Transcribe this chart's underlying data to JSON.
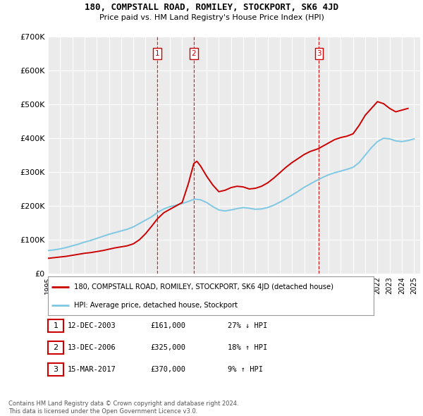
{
  "title": "180, COMPSTALL ROAD, ROMILEY, STOCKPORT, SK6 4JD",
  "subtitle": "Price paid vs. HM Land Registry's House Price Index (HPI)",
  "ylim": [
    0,
    700000
  ],
  "yticks": [
    0,
    100000,
    200000,
    300000,
    400000,
    500000,
    600000,
    700000
  ],
  "ytick_labels": [
    "£0",
    "£100K",
    "£200K",
    "£300K",
    "£400K",
    "£500K",
    "£600K",
    "£700K"
  ],
  "background_color": "#ffffff",
  "plot_bg_color": "#ebebeb",
  "grid_color": "#ffffff",
  "hpi_color": "#7ec8e3",
  "price_color": "#cc0000",
  "vline_color": "#cc0000",
  "purchases": [
    {
      "date_num": 2003.95,
      "price": 161000,
      "label": "1"
    },
    {
      "date_num": 2006.95,
      "price": 325000,
      "label": "2"
    },
    {
      "date_num": 2017.21,
      "price": 370000,
      "label": "3"
    }
  ],
  "hpi_data": {
    "years": [
      1995.0,
      1995.5,
      1996.0,
      1996.5,
      1997.0,
      1997.5,
      1998.0,
      1998.5,
      1999.0,
      1999.5,
      2000.0,
      2000.5,
      2001.0,
      2001.5,
      2002.0,
      2002.5,
      2003.0,
      2003.5,
      2004.0,
      2004.5,
      2005.0,
      2005.5,
      2006.0,
      2006.5,
      2007.0,
      2007.5,
      2008.0,
      2008.5,
      2009.0,
      2009.5,
      2010.0,
      2010.5,
      2011.0,
      2011.5,
      2012.0,
      2012.5,
      2013.0,
      2013.5,
      2014.0,
      2014.5,
      2015.0,
      2015.5,
      2016.0,
      2016.5,
      2017.0,
      2017.5,
      2018.0,
      2018.5,
      2019.0,
      2019.5,
      2020.0,
      2020.5,
      2021.0,
      2021.5,
      2022.0,
      2022.5,
      2023.0,
      2023.5,
      2024.0,
      2024.5,
      2025.0
    ],
    "values": [
      68000,
      70000,
      73000,
      77000,
      82000,
      87000,
      93000,
      98000,
      104000,
      110000,
      116000,
      121000,
      126000,
      131000,
      138000,
      148000,
      158000,
      168000,
      181000,
      191000,
      198000,
      202000,
      207000,
      213000,
      220000,
      218000,
      210000,
      198000,
      188000,
      185000,
      188000,
      192000,
      195000,
      193000,
      190000,
      191000,
      195000,
      202000,
      211000,
      221000,
      232000,
      243000,
      255000,
      265000,
      275000,
      284000,
      292000,
      298000,
      303000,
      308000,
      314000,
      328000,
      350000,
      372000,
      390000,
      400000,
      398000,
      392000,
      390000,
      393000,
      398000
    ]
  },
  "price_data": {
    "years": [
      1995.0,
      1995.5,
      1996.0,
      1996.5,
      1997.0,
      1997.5,
      1998.0,
      1998.5,
      1999.0,
      1999.5,
      2000.0,
      2000.5,
      2001.0,
      2001.5,
      2002.0,
      2002.5,
      2003.0,
      2003.5,
      2003.95,
      2004.5,
      2005.0,
      2005.5,
      2006.0,
      2006.5,
      2006.95,
      2007.2,
      2007.5,
      2008.0,
      2008.5,
      2009.0,
      2009.5,
      2010.0,
      2010.5,
      2011.0,
      2011.5,
      2012.0,
      2012.5,
      2013.0,
      2013.5,
      2014.0,
      2014.5,
      2015.0,
      2015.5,
      2016.0,
      2016.5,
      2017.0,
      2017.21,
      2017.5,
      2018.0,
      2018.5,
      2019.0,
      2019.5,
      2020.0,
      2020.5,
      2021.0,
      2021.5,
      2022.0,
      2022.5,
      2023.0,
      2023.5,
      2024.0,
      2024.5
    ],
    "values": [
      45000,
      47000,
      49000,
      51000,
      54000,
      57000,
      60000,
      62000,
      65000,
      68000,
      72000,
      76000,
      79000,
      82000,
      88000,
      100000,
      118000,
      140000,
      161000,
      180000,
      190000,
      200000,
      210000,
      265000,
      325000,
      332000,
      318000,
      288000,
      262000,
      242000,
      246000,
      254000,
      258000,
      256000,
      250000,
      252000,
      258000,
      268000,
      282000,
      298000,
      314000,
      328000,
      340000,
      352000,
      361000,
      367000,
      370000,
      376000,
      386000,
      396000,
      402000,
      406000,
      413000,
      438000,
      468000,
      488000,
      508000,
      502000,
      488000,
      478000,
      483000,
      488000
    ]
  },
  "transaction_labels": [
    {
      "label": "1",
      "date": "12-DEC-2003",
      "price": "£161,000",
      "hpi_rel": "27% ↓ HPI"
    },
    {
      "label": "2",
      "date": "13-DEC-2006",
      "price": "£325,000",
      "hpi_rel": "18% ↑ HPI"
    },
    {
      "label": "3",
      "date": "15-MAR-2017",
      "price": "£370,000",
      "hpi_rel": "9% ↑ HPI"
    }
  ],
  "legend_line1": "180, COMPSTALL ROAD, ROMILEY, STOCKPORT, SK6 4JD (detached house)",
  "legend_line2": "HPI: Average price, detached house, Stockport",
  "footer_line1": "Contains HM Land Registry data © Crown copyright and database right 2024.",
  "footer_line2": "This data is licensed under the Open Government Licence v3.0.",
  "xlabel_years": [
    1995,
    1996,
    1997,
    1998,
    1999,
    2000,
    2001,
    2002,
    2003,
    2004,
    2005,
    2006,
    2007,
    2008,
    2009,
    2010,
    2011,
    2012,
    2013,
    2014,
    2015,
    2016,
    2017,
    2018,
    2019,
    2020,
    2021,
    2022,
    2023,
    2024,
    2025
  ]
}
